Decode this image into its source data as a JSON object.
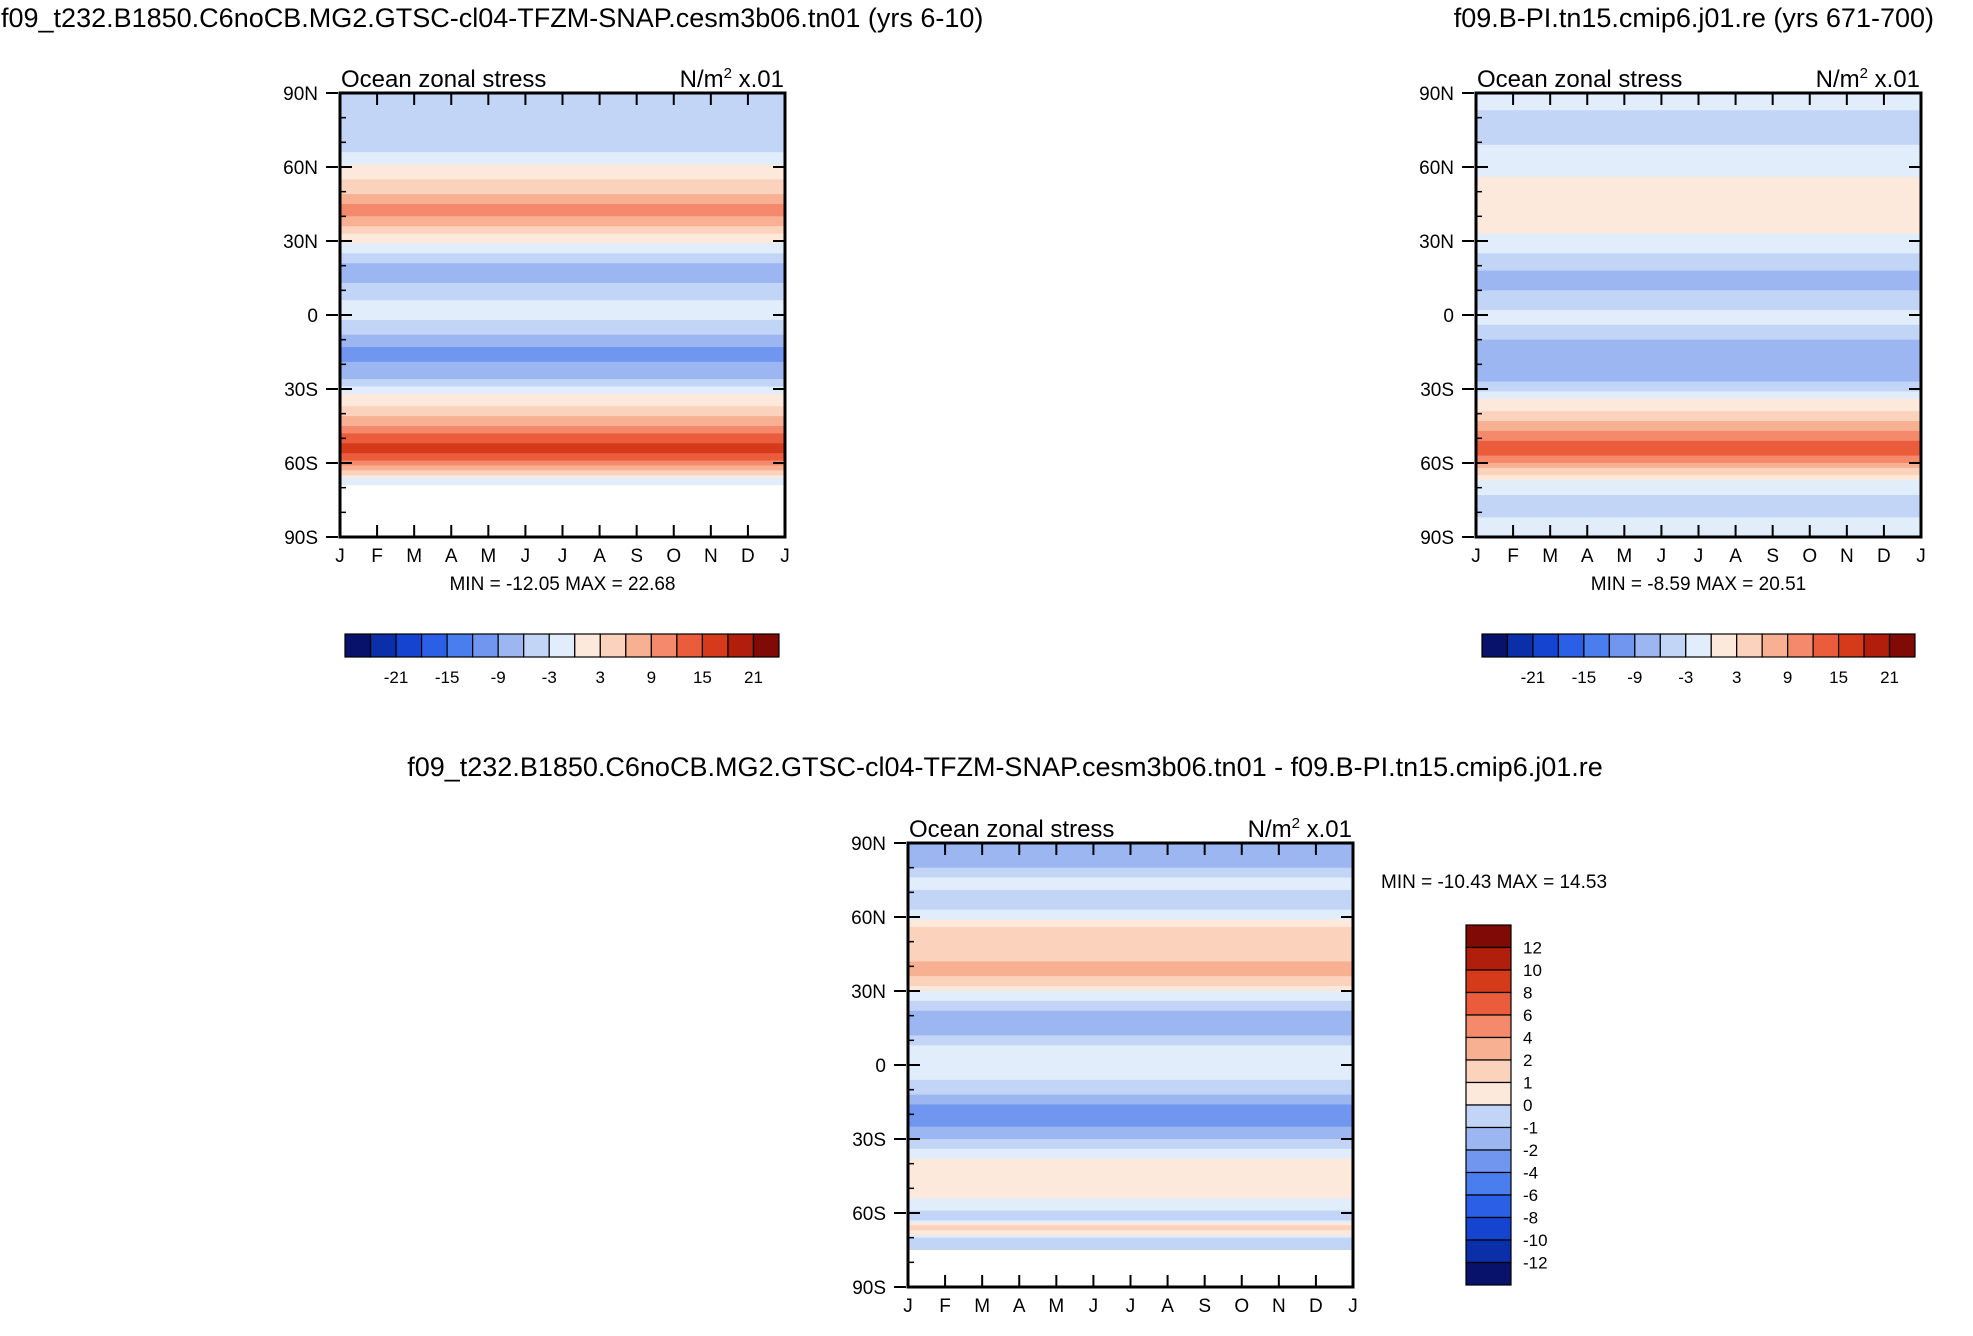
{
  "figure": {
    "top_left_title": "f09_t232.B1850.C6noCB.MG2.GTSC-cl04-TFZM-SNAP.cesm3b06.tn01 (yrs 6-10)",
    "top_right_title": "f09.B-PI.tn15.cmip6.j01.re (yrs 671-700)",
    "bottom_title": "f09_t232.B1850.C6noCB.MG2.GTSC-cl04-TFZM-SNAP.cesm3b06.tn01 - f09.B-PI.tn15.cmip6.j01.re"
  },
  "chart_data": [
    {
      "id": "panel-test",
      "type": "heatmap",
      "title": "Ocean zonal stress",
      "units_prefix": "N/m",
      "units_sup": "2",
      "units_suffix": " x.01",
      "x_ticks": [
        "J",
        "F",
        "M",
        "A",
        "M",
        "J",
        "J",
        "A",
        "S",
        "O",
        "N",
        "D",
        "J"
      ],
      "y_ticks": [
        "90N",
        "60N",
        "30N",
        "0",
        "30S",
        "60S",
        "90S"
      ],
      "y_values": [
        90,
        60,
        30,
        0,
        -30,
        -60,
        -90
      ],
      "ylim": [
        -90,
        90
      ],
      "min_max_label": "MIN = -12.05 MAX =  22.68",
      "min": -12.05,
      "max": 22.68,
      "colorbar_ticks": [
        "-21",
        "-15",
        "-9",
        "-3",
        "3",
        "9",
        "15",
        "21"
      ],
      "levels": [
        -24,
        -21,
        -18,
        -15,
        -12,
        -9,
        -6,
        -3,
        0,
        3,
        6,
        9,
        12,
        15,
        18,
        21,
        24
      ],
      "land_lat": -69,
      "bands": [
        {
          "lat": 85,
          "value": -1.0
        },
        {
          "lat": 75,
          "value": -3.0
        },
        {
          "lat": 67,
          "value": -1.0
        },
        {
          "lat": 60,
          "value": 4.0
        },
        {
          "lat": 50,
          "value": 8.0
        },
        {
          "lat": 42,
          "value": 14.0
        },
        {
          "lat": 34,
          "value": 7.0
        },
        {
          "lat": 26,
          "value": 1.0
        },
        {
          "lat": 18,
          "value": -5.0
        },
        {
          "lat": 10,
          "value": -2.0
        },
        {
          "lat": 2,
          "value": 2.0
        },
        {
          "lat": -6,
          "value": -2.0
        },
        {
          "lat": -15,
          "value": -7.0
        },
        {
          "lat": -24,
          "value": -5.0
        },
        {
          "lat": -32,
          "value": 3.0
        },
        {
          "lat": -40,
          "value": 8.0
        },
        {
          "lat": -47,
          "value": 14.0
        },
        {
          "lat": -55,
          "value": 20.0
        },
        {
          "lat": -62,
          "value": 10.0
        },
        {
          "lat": -68,
          "value": 0.5
        },
        {
          "lat": -75,
          "value": -1.0
        }
      ]
    },
    {
      "id": "panel-control",
      "type": "heatmap",
      "title": "Ocean zonal stress",
      "units_prefix": "N/m",
      "units_sup": "2",
      "units_suffix": " x.01",
      "x_ticks": [
        "J",
        "F",
        "M",
        "A",
        "M",
        "J",
        "J",
        "A",
        "S",
        "O",
        "N",
        "D",
        "J"
      ],
      "y_ticks": [
        "90N",
        "60N",
        "30N",
        "0",
        "30S",
        "60S",
        "90S"
      ],
      "y_values": [
        90,
        60,
        30,
        0,
        -30,
        -60,
        -90
      ],
      "ylim": [
        -90,
        90
      ],
      "min_max_label": "MIN =  -8.59 MAX =  20.51",
      "min": -8.59,
      "max": 20.51,
      "colorbar_ticks": [
        "-21",
        "-15",
        "-9",
        "-3",
        "3",
        "9",
        "15",
        "21"
      ],
      "levels": [
        -24,
        -21,
        -18,
        -15,
        -12,
        -9,
        -6,
        -3,
        0,
        3,
        6,
        9,
        12,
        15,
        18,
        21,
        24
      ],
      "land_lat": -90,
      "bands": [
        {
          "lat": 86,
          "value": 0.5
        },
        {
          "lat": 76,
          "value": -1.0
        },
        {
          "lat": 66,
          "value": 0.5
        },
        {
          "lat": 56,
          "value": 3.0
        },
        {
          "lat": 46,
          "value": 5.0
        },
        {
          "lat": 38,
          "value": 5.0
        },
        {
          "lat": 30,
          "value": 2.0
        },
        {
          "lat": 22,
          "value": -1.0
        },
        {
          "lat": 14,
          "value": -5.0
        },
        {
          "lat": 6,
          "value": -1.0
        },
        {
          "lat": -2,
          "value": 1.0
        },
        {
          "lat": -10,
          "value": -3.0
        },
        {
          "lat": -18,
          "value": -6.0
        },
        {
          "lat": -26,
          "value": -4.0
        },
        {
          "lat": -34,
          "value": 3.0
        },
        {
          "lat": -42,
          "value": 8.0
        },
        {
          "lat": -48,
          "value": 13.0
        },
        {
          "lat": -55,
          "value": 18.0
        },
        {
          "lat": -61,
          "value": 10.0
        },
        {
          "lat": -68,
          "value": 2.0
        },
        {
          "lat": -76,
          "value": -1.0
        },
        {
          "lat": -85,
          "value": 0.5
        }
      ]
    },
    {
      "id": "panel-diff",
      "type": "heatmap",
      "title": "Ocean zonal stress",
      "units_prefix": "N/m",
      "units_sup": "2",
      "units_suffix": " x.01",
      "x_ticks": [
        "J",
        "F",
        "M",
        "A",
        "M",
        "J",
        "J",
        "A",
        "S",
        "O",
        "N",
        "D",
        "J"
      ],
      "y_ticks": [
        "90N",
        "60N",
        "30N",
        "0",
        "30S",
        "60S",
        "90S"
      ],
      "y_values": [
        90,
        60,
        30,
        0,
        -30,
        -60,
        -90
      ],
      "ylim": [
        -90,
        90
      ],
      "min_max_label": "MIN = -10.43 MAX =  14.53",
      "min": -10.43,
      "max": 14.53,
      "colorbar_ticks": [
        "12",
        "10",
        "8",
        "6",
        "4",
        "2",
        "1",
        "0",
        "-1",
        "-2",
        "-4",
        "-6",
        "-8",
        "-10",
        "-12"
      ],
      "levels": [
        -14,
        -12,
        -10,
        -8,
        -6,
        -4,
        -2,
        -1,
        0,
        1,
        2,
        4,
        6,
        8,
        10,
        12,
        14
      ],
      "land_lat": -75,
      "bands": [
        {
          "lat": 82,
          "value": -1.5
        },
        {
          "lat": 74,
          "value": 0.5
        },
        {
          "lat": 66,
          "value": -1.0
        },
        {
          "lat": 56,
          "value": 2.0
        },
        {
          "lat": 46,
          "value": 3.0
        },
        {
          "lat": 38,
          "value": 5.0
        },
        {
          "lat": 30,
          "value": 1.0
        },
        {
          "lat": 22,
          "value": -1.0
        },
        {
          "lat": 14,
          "value": -1.5
        },
        {
          "lat": 6,
          "value": 0.5
        },
        {
          "lat": -2,
          "value": 0.5
        },
        {
          "lat": -10,
          "value": -0.5
        },
        {
          "lat": -20,
          "value": -3.0
        },
        {
          "lat": -30,
          "value": -1.0
        },
        {
          "lat": -38,
          "value": 1.0
        },
        {
          "lat": -46,
          "value": 2.0
        },
        {
          "lat": -54,
          "value": 1.0
        },
        {
          "lat": -62,
          "value": -0.5
        },
        {
          "lat": -66,
          "value": 3.0
        },
        {
          "lat": -71,
          "value": -1.0
        }
      ]
    }
  ],
  "colors": {
    "level_colors": [
      "#08126b",
      "#0b2fa8",
      "#1545d0",
      "#2a5fe6",
      "#4a7ded",
      "#7196ef",
      "#9cb6f2",
      "#c3d5f7",
      "#e1edfb",
      "#fde9dc",
      "#fbd3bc",
      "#f8b093",
      "#f4896c",
      "#ea5c3b",
      "#d53a1b",
      "#b11e0b",
      "#7f0a06"
    ],
    "land": "#ffffff",
    "frame": "#000000"
  }
}
